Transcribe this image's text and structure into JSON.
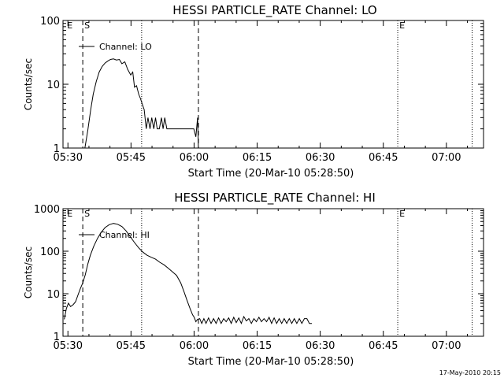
{
  "footer": {
    "date_stamp": "17-May-2010 20:15"
  },
  "chart_data": [
    {
      "type": "line",
      "title": "HESSI PARTICLE_RATE Channel: LO",
      "xlabel": "Start Time (20-Mar-10 05:28:50)",
      "ylabel": "Counts/sec",
      "xunit": "minutes since 05:28:50",
      "xlim": [
        0,
        100
      ],
      "ylim": [
        1,
        100
      ],
      "yscale": "log",
      "x_ticks": [
        {
          "x": 1.17,
          "label": "05:30"
        },
        {
          "x": 16.17,
          "label": "05:45"
        },
        {
          "x": 31.17,
          "label": "06:00"
        },
        {
          "x": 46.17,
          "label": "06:15"
        },
        {
          "x": 61.17,
          "label": "06:30"
        },
        {
          "x": 76.17,
          "label": "06:45"
        },
        {
          "x": 91.17,
          "label": "07:00"
        }
      ],
      "y_ticks": [
        {
          "y": 1,
          "label": "1"
        },
        {
          "y": 10,
          "label": "10"
        },
        {
          "y": 100,
          "label": "100"
        }
      ],
      "markers": [
        {
          "x": 0.6,
          "label": "E",
          "style": "none"
        },
        {
          "x": 4.7,
          "label": "S",
          "style": "dashed"
        },
        {
          "x": 18.7,
          "label": "",
          "style": "dotted"
        },
        {
          "x": 32.2,
          "label": "",
          "style": "dashed"
        },
        {
          "x": 79.6,
          "label": "E",
          "style": "dotted"
        },
        {
          "x": 97.3,
          "label": "",
          "style": "dotted"
        }
      ],
      "grid": false,
      "legend": "top-left",
      "series": [
        {
          "name": "Channel: LO",
          "x": [
            5.2,
            5.9,
            6.6,
            7.2,
            7.9,
            8.6,
            9.3,
            10.0,
            10.6,
            11.3,
            12.0,
            12.7,
            13.4,
            14.0,
            14.7,
            15.4,
            16.1,
            16.6,
            17.0,
            17.5,
            18.0,
            18.4,
            18.8,
            19.3,
            19.8,
            20.2,
            20.7,
            21.1,
            21.6,
            22.0,
            22.4,
            22.9,
            23.4,
            23.8,
            24.2,
            24.7,
            25.2,
            25.7,
            26.1,
            26.6,
            27.0,
            27.5,
            28.1,
            29.0,
            30.0,
            30.6,
            31.1,
            31.6,
            32.0,
            32.2
          ],
          "y": [
            1,
            1.9,
            4.0,
            7.0,
            11.0,
            15.5,
            19.0,
            21.5,
            23.0,
            24.5,
            25.0,
            24.0,
            24.5,
            21.0,
            22.5,
            17.0,
            14.0,
            15.5,
            9.0,
            9.5,
            7.0,
            6.0,
            5.0,
            4.0,
            2.0,
            3.0,
            2.0,
            3.0,
            2.0,
            3.0,
            2.0,
            2.0,
            3.0,
            2.0,
            3.0,
            2.0,
            2.0,
            2.0,
            2.0,
            2.0,
            2.0,
            2.0,
            2.0,
            2.0,
            2.0,
            2.0,
            2.0,
            1.5,
            3.0,
            1
          ]
        }
      ]
    },
    {
      "type": "line",
      "title": "HESSI PARTICLE_RATE Channel: HI",
      "xlabel": "Start Time (20-Mar-10 05:28:50)",
      "ylabel": "Counts/sec",
      "xunit": "minutes since 05:28:50",
      "xlim": [
        0,
        100
      ],
      "ylim": [
        1,
        1000
      ],
      "yscale": "log",
      "x_ticks": [
        {
          "x": 1.17,
          "label": "05:30"
        },
        {
          "x": 16.17,
          "label": "05:45"
        },
        {
          "x": 31.17,
          "label": "06:00"
        },
        {
          "x": 46.17,
          "label": "06:15"
        },
        {
          "x": 61.17,
          "label": "06:30"
        },
        {
          "x": 76.17,
          "label": "06:45"
        },
        {
          "x": 91.17,
          "label": "07:00"
        }
      ],
      "y_ticks": [
        {
          "y": 1,
          "label": "1"
        },
        {
          "y": 10,
          "label": "10"
        },
        {
          "y": 100,
          "label": "100"
        },
        {
          "y": 1000,
          "label": "1000"
        }
      ],
      "markers": [
        {
          "x": 0.6,
          "label": "E",
          "style": "none"
        },
        {
          "x": 4.7,
          "label": "S",
          "style": "dashed"
        },
        {
          "x": 18.7,
          "label": "",
          "style": "dotted"
        },
        {
          "x": 32.2,
          "label": "",
          "style": "dashed"
        },
        {
          "x": 79.6,
          "label": "E",
          "style": "dotted"
        },
        {
          "x": 97.3,
          "label": "",
          "style": "dotted"
        }
      ],
      "grid": false,
      "legend": "top-left",
      "series": [
        {
          "name": "Channel: HI",
          "x": [
            0.3,
            0.8,
            1.3,
            1.8,
            2.4,
            3.0,
            3.5,
            4.1,
            4.7,
            5.3,
            5.9,
            6.5,
            7.3,
            8.2,
            9.1,
            10.0,
            11.0,
            12.0,
            13.0,
            14.0,
            15.0,
            16.0,
            17.0,
            18.0,
            19.0,
            20.0,
            21.0,
            22.0,
            23.0,
            24.0,
            25.0,
            26.0,
            27.0,
            28.0,
            28.8,
            29.5,
            30.2,
            30.8,
            31.2,
            31.6,
            32.0,
            32.5,
            33.0,
            33.5,
            34.0,
            34.6,
            35.2,
            35.8,
            36.4,
            37.0,
            37.6,
            38.2,
            38.8,
            39.4,
            40.0,
            40.6,
            41.2,
            41.8,
            42.4,
            43.0,
            43.6,
            44.2,
            44.8,
            45.4,
            46.0,
            46.6,
            47.2,
            47.8,
            48.4,
            49.0,
            49.6,
            50.2,
            50.8,
            51.4,
            52.0,
            52.6,
            53.2,
            53.8,
            54.4,
            55.0,
            55.6,
            56.2,
            56.8,
            57.4,
            58.0,
            58.6,
            59.2
          ],
          "y": [
            2.5,
            4.5,
            6.0,
            5.0,
            5.5,
            6.5,
            9.0,
            13.0,
            18.0,
            28.0,
            50.0,
            80.0,
            130.0,
            200.0,
            280.0,
            360.0,
            420.0,
            450.0,
            430.0,
            380.0,
            300.0,
            220.0,
            160.0,
            120.0,
            95.0,
            80.0,
            72.0,
            65.0,
            55.0,
            48.0,
            40.0,
            33.0,
            27.0,
            18.0,
            11.0,
            7.0,
            4.5,
            3.2,
            2.8,
            2.2,
            2.5,
            2.6,
            2.0,
            2.6,
            2.0,
            2.7,
            2.0,
            2.6,
            2.0,
            2.7,
            2.0,
            2.6,
            2.2,
            2.7,
            2.0,
            2.8,
            2.1,
            2.7,
            2.0,
            2.9,
            2.3,
            2.6,
            2.0,
            2.6,
            2.2,
            2.8,
            2.2,
            2.6,
            2.2,
            2.8,
            2.0,
            2.7,
            2.0,
            2.6,
            2.0,
            2.6,
            2.0,
            2.6,
            2.0,
            2.6,
            2.0,
            2.6,
            2.0,
            2.6,
            2.6,
            2.0,
            2.0
          ]
        }
      ]
    }
  ]
}
